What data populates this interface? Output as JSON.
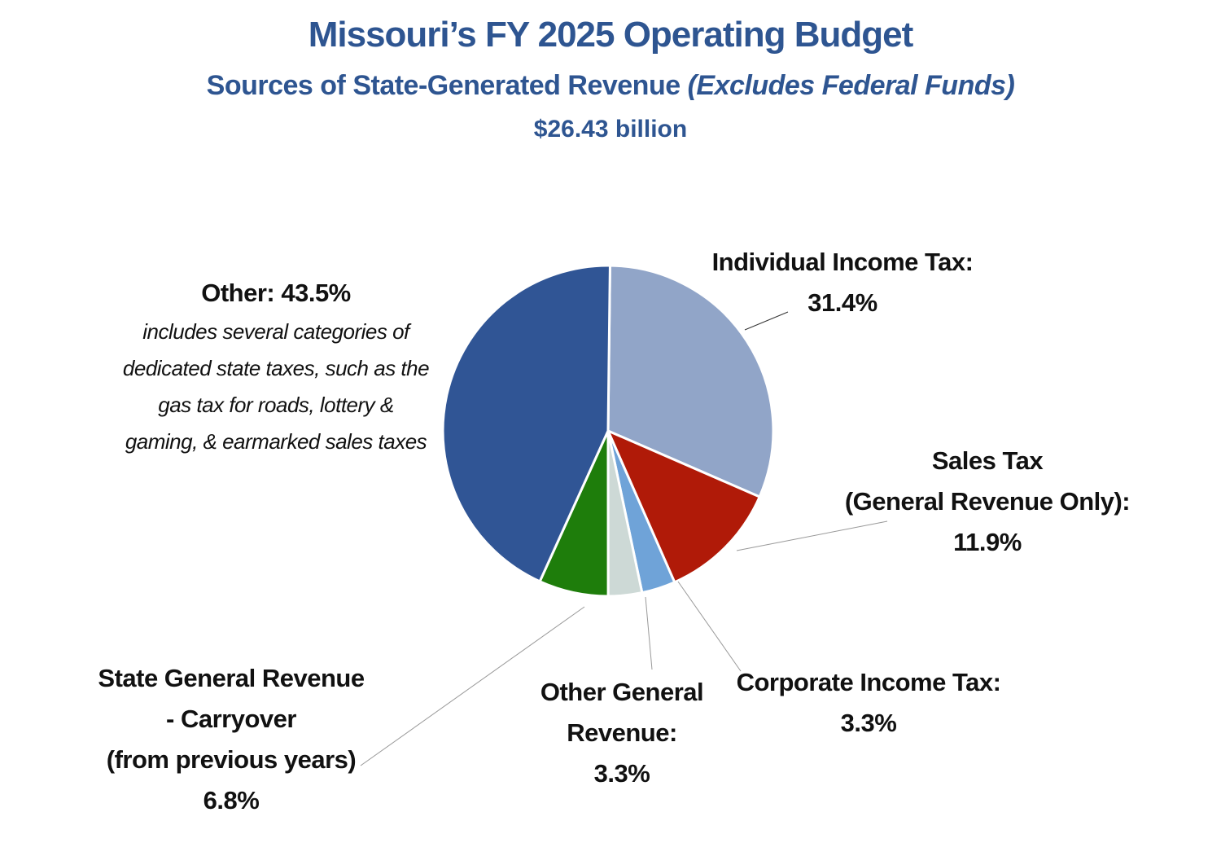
{
  "title": "Missouri’s FY 2025 Operating Budget",
  "subtitle_main": "Sources of State-Generated Revenue ",
  "subtitle_italic": "(Excludes Federal Funds)",
  "total": "$26.43 billion",
  "chart_data": {
    "type": "pie",
    "title": "Missouri’s FY 2025 Operating Budget",
    "subtitle": "Sources of State-Generated Revenue (Excludes Federal Funds)",
    "total": "$26.43 billion",
    "slices": [
      {
        "name": "Individual Income Tax",
        "value": 31.4,
        "color": "#91a5c8",
        "label_lines": [
          "Individual Income Tax:",
          "31.4%"
        ]
      },
      {
        "name": "Sales Tax (General Revenue Only)",
        "value": 11.9,
        "color": "#b01a08",
        "label_lines": [
          "Sales Tax",
          "(General Revenue Only):",
          "11.9%"
        ]
      },
      {
        "name": "Corporate Income Tax",
        "value": 3.3,
        "color": "#6fa3d8",
        "label_lines": [
          "Corporate Income Tax:",
          "3.3%"
        ]
      },
      {
        "name": "Other General Revenue",
        "value": 3.3,
        "color": "#cdd9d6",
        "label_lines": [
          "Other General",
          "Revenue:",
          "3.3%"
        ]
      },
      {
        "name": "State General Revenue - Carryover (from previous years)",
        "value": 6.8,
        "color": "#1e7d0b",
        "label_lines": [
          "State General Revenue",
          "- Carryover",
          "(from previous years)",
          "6.8%"
        ]
      },
      {
        "name": "Other",
        "value": 43.5,
        "color": "#305595",
        "label_lines": [
          "Other: 43.5%"
        ],
        "note_lines": [
          "includes several categories of",
          "dedicated state taxes, such as the",
          "gas tax for roads, lottery &",
          "gaming, & earmarked sales taxes"
        ]
      }
    ]
  }
}
